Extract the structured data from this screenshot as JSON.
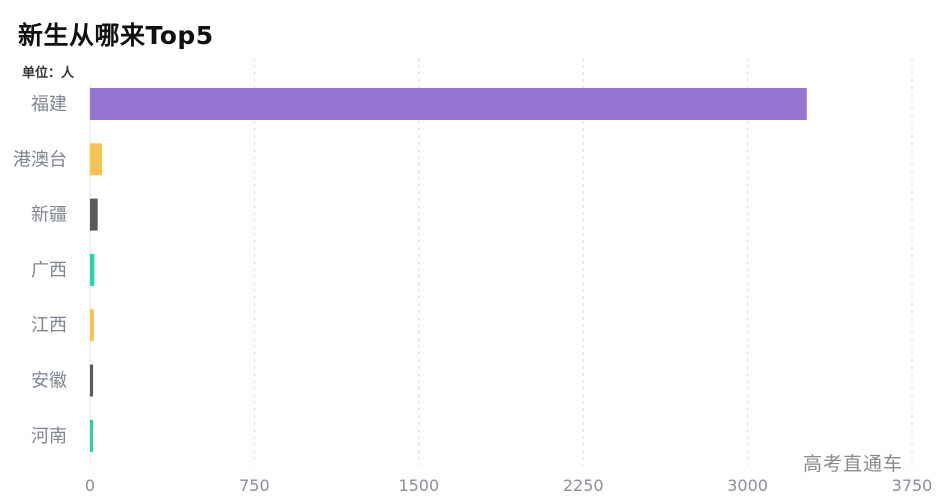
{
  "chart_data": {
    "type": "bar",
    "orientation": "horizontal",
    "title": "新生从哪来Top5",
    "subtitle": "单位：人",
    "categories": [
      "福建",
      "港澳台",
      "新疆",
      "广西",
      "江西",
      "安徽",
      "河南"
    ],
    "values": [
      3270,
      55,
      35,
      20,
      18,
      14,
      12
    ],
    "colors": [
      "#9575d2",
      "#f9c253",
      "#595a5e",
      "#24d4a5",
      "#f9c253",
      "#595a5e",
      "#24d4a5"
    ],
    "xlim": [
      0,
      3750
    ],
    "xticks": [
      0,
      750,
      1500,
      2250,
      3000,
      3750
    ],
    "grid": "vertical-dashed",
    "legend": "none"
  },
  "watermark": "高考直通车"
}
